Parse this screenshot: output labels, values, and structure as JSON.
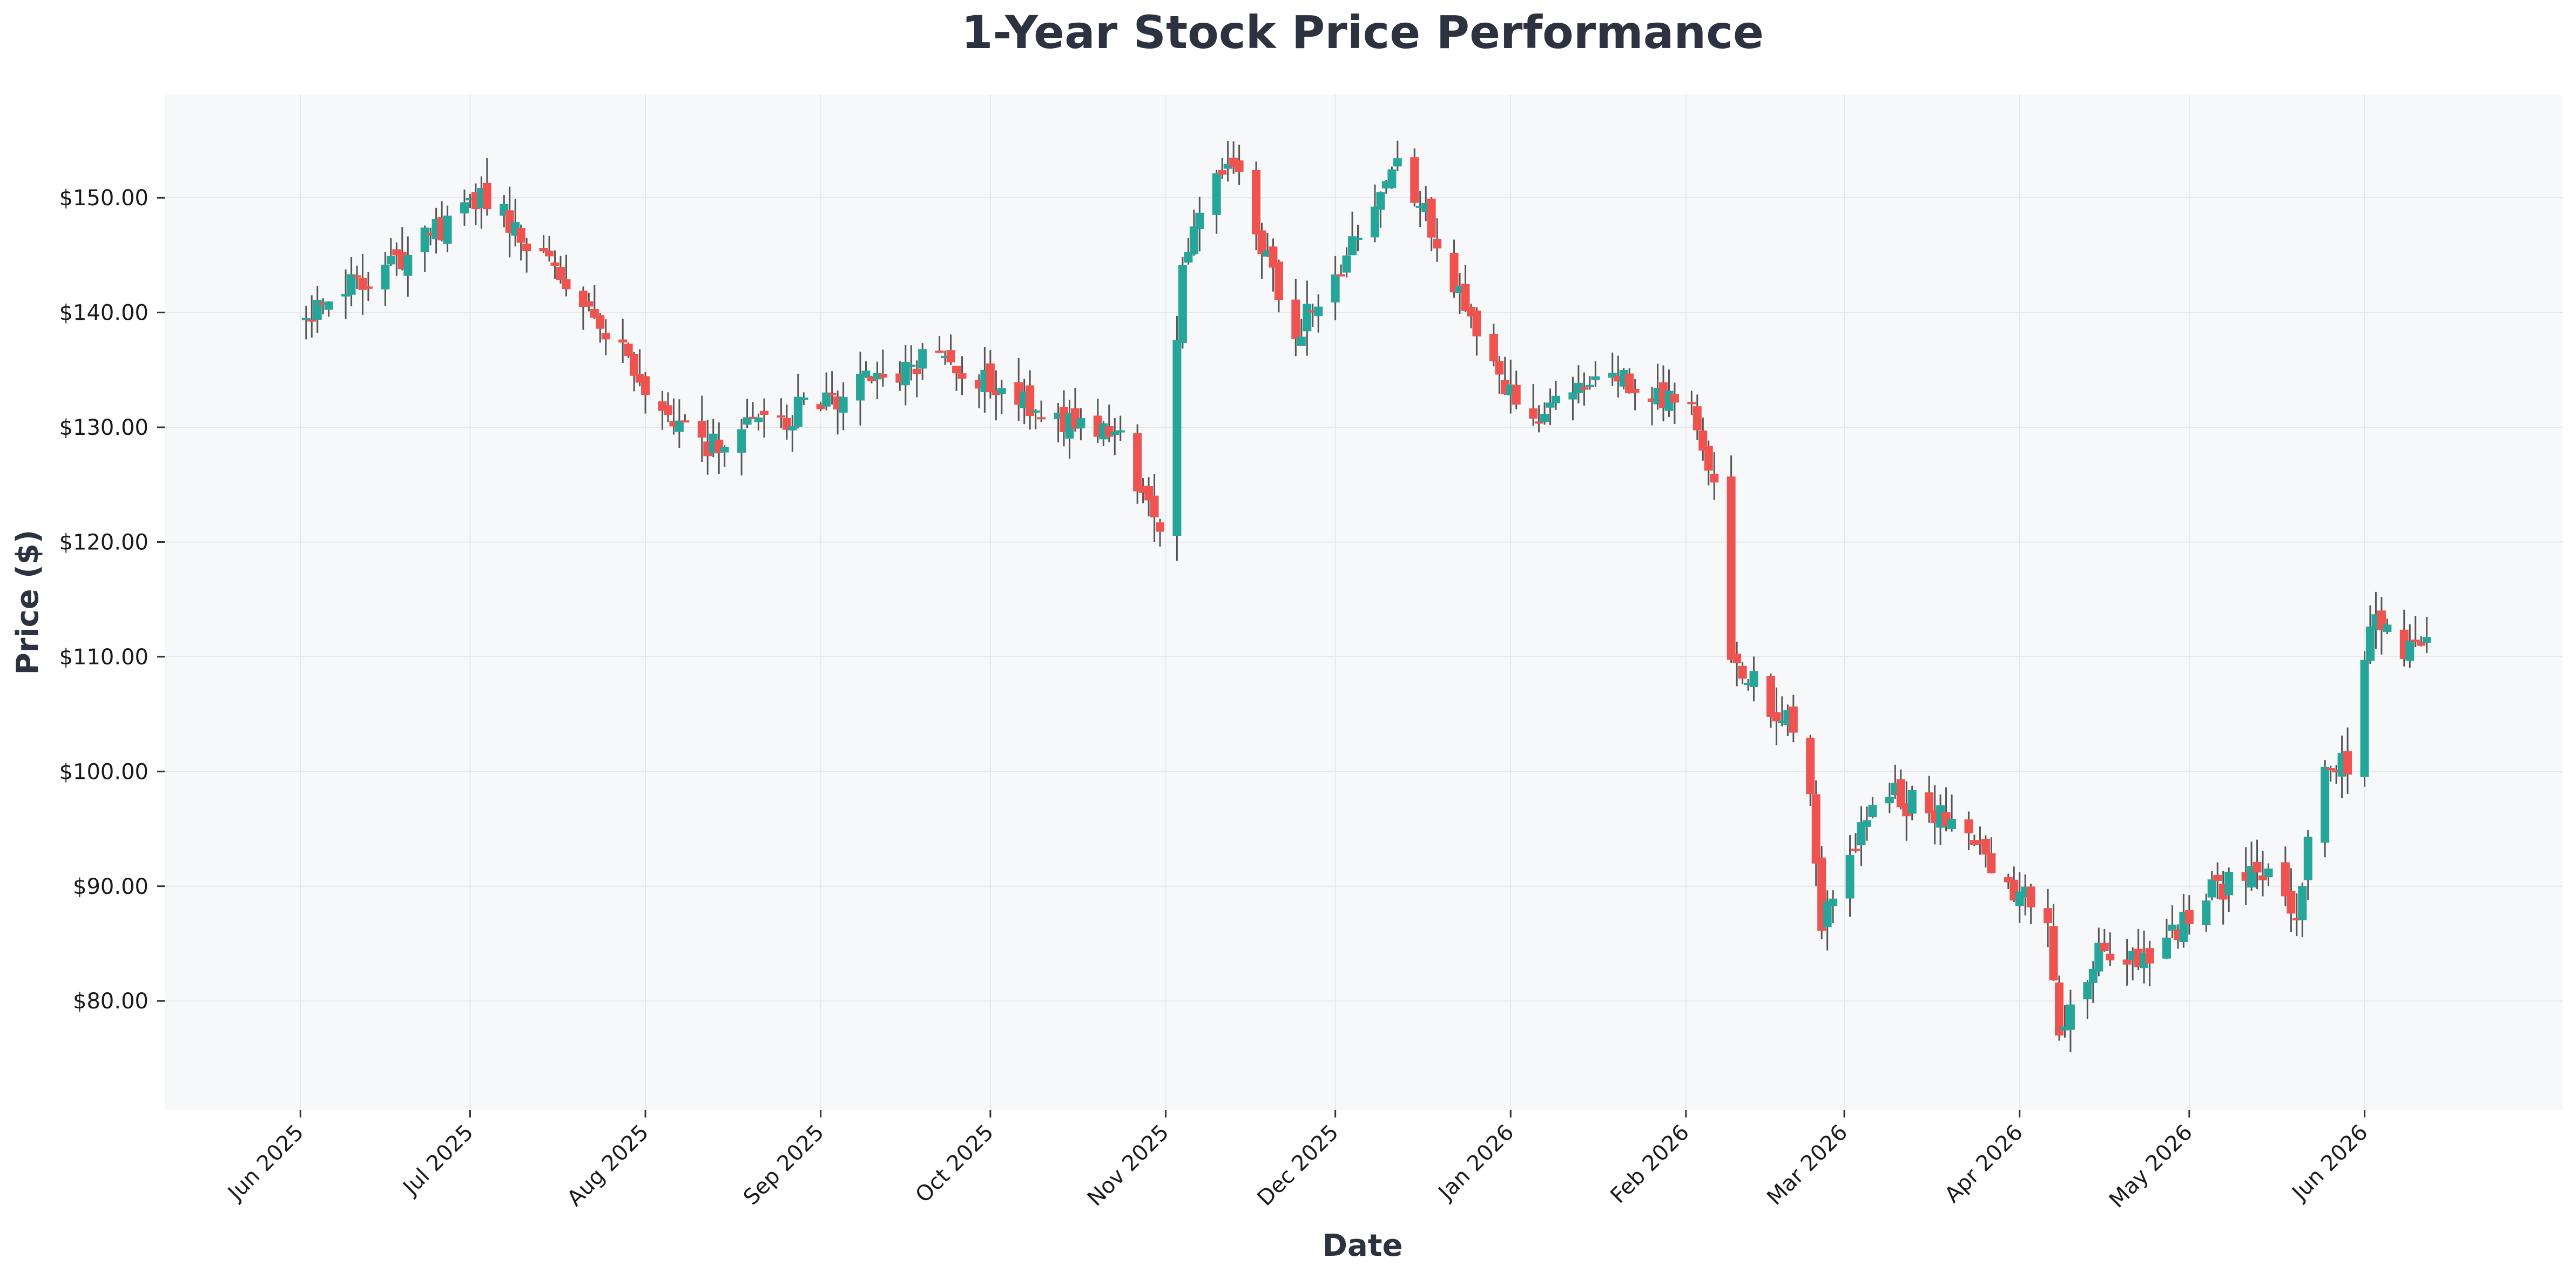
{
  "chart_data": {
    "type": "candlestick",
    "title": "1-Year Stock Price Performance",
    "xlabel": "Date",
    "ylabel": "Price ($)",
    "grid": true,
    "legend": "none",
    "ylim": [
      70.5,
      159
    ],
    "xlim": [
      "2025-05-08",
      "2026-07-06"
    ],
    "y_ticks": [
      80,
      90,
      100,
      110,
      120,
      130,
      140,
      150
    ],
    "y_tick_labels": [
      "$80.00",
      "$90.00",
      "$100.00",
      "$110.00",
      "$120.00",
      "$130.00",
      "$140.00",
      "$150.00"
    ],
    "x_ticks": [
      {
        "date": "2025-06-01",
        "label": "Jun 2025"
      },
      {
        "date": "2025-07-01",
        "label": "Jul 2025"
      },
      {
        "date": "2025-08-01",
        "label": "Aug 2025"
      },
      {
        "date": "2025-09-01",
        "label": "Sep 2025"
      },
      {
        "date": "2025-10-01",
        "label": "Oct 2025"
      },
      {
        "date": "2025-11-01",
        "label": "Nov 2025"
      },
      {
        "date": "2025-12-01",
        "label": "Dec 2025"
      },
      {
        "date": "2026-01-01",
        "label": "Jan 2026"
      },
      {
        "date": "2026-02-01",
        "label": "Feb 2026"
      },
      {
        "date": "2026-03-01",
        "label": "Mar 2026"
      },
      {
        "date": "2026-04-01",
        "label": "Apr 2026"
      },
      {
        "date": "2026-05-01",
        "label": "May 2026"
      },
      {
        "date": "2026-06-01",
        "label": "Jun 2026"
      }
    ],
    "colors": {
      "up": "#26a69a",
      "down": "#ef5350",
      "wick": "#555555",
      "plot_bg": "#f7f8fa",
      "grid": "#e6e8ec",
      "title": "#2d3240"
    },
    "date_range": [
      "2025-06-01",
      "2026-06-12"
    ],
    "key_points": [
      {
        "date": "2025-06-02",
        "close": 139.5
      },
      {
        "date": "2025-07-04",
        "close": 150.0
      },
      {
        "date": "2025-08-11",
        "close": 128.0
      },
      {
        "date": "2025-09-20",
        "close": 136.0
      },
      {
        "date": "2025-10-24",
        "close": 128.5
      },
      {
        "date": "2025-10-31",
        "close": 121.5
      },
      {
        "date": "2025-11-04",
        "close": 144.0
      },
      {
        "date": "2025-11-12",
        "close": 154.0
      },
      {
        "date": "2025-11-24",
        "close": 138.0
      },
      {
        "date": "2025-12-13",
        "close": 153.0
      },
      {
        "date": "2025-12-24",
        "close": 140.0
      },
      {
        "date": "2026-01-03",
        "close": 131.0
      },
      {
        "date": "2026-01-18",
        "close": 134.5
      },
      {
        "date": "2026-02-02",
        "close": 132.0
      },
      {
        "date": "2026-02-06",
        "close": 126.0
      },
      {
        "date": "2026-02-09",
        "close": 111.0
      },
      {
        "date": "2026-02-16",
        "close": 105.0
      },
      {
        "date": "2026-02-22",
        "close": 104.0
      },
      {
        "date": "2026-02-25",
        "close": 86.5
      },
      {
        "date": "2026-03-07",
        "close": 98.5
      },
      {
        "date": "2026-03-20",
        "close": 95.5
      },
      {
        "date": "2026-03-28",
        "close": 91.0
      },
      {
        "date": "2026-04-06",
        "close": 87.0
      },
      {
        "date": "2026-04-08",
        "close": 76.5
      },
      {
        "date": "2026-04-15",
        "close": 84.0
      },
      {
        "date": "2026-04-25",
        "close": 84.0
      },
      {
        "date": "2026-05-06",
        "close": 90.0
      },
      {
        "date": "2026-05-15",
        "close": 91.0
      },
      {
        "date": "2026-05-20",
        "close": 87.0
      },
      {
        "date": "2026-05-24",
        "close": 99.5
      },
      {
        "date": "2026-05-30",
        "close": 101.0
      },
      {
        "date": "2026-06-02",
        "close": 113.0
      },
      {
        "date": "2026-06-07",
        "close": 111.0
      },
      {
        "date": "2026-06-12",
        "close": 110.5
      }
    ]
  }
}
